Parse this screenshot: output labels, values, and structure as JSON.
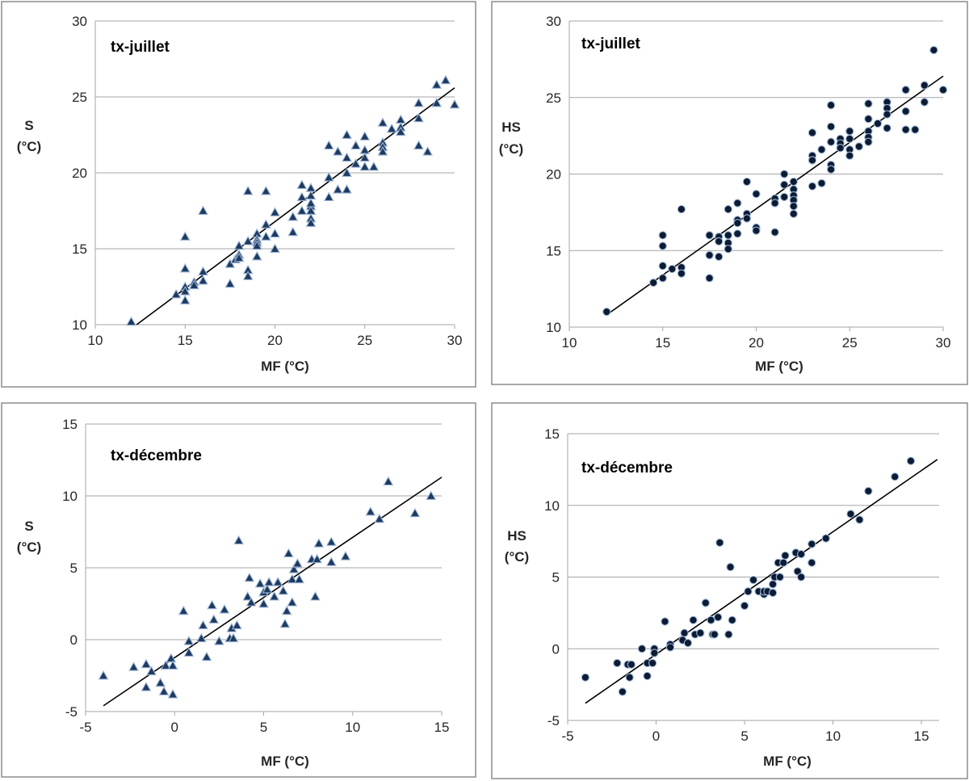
{
  "colors": {
    "frame": "#8c8c8c",
    "grid": "#a6a6a6",
    "marker_fill_triangle": "#1f3a5f",
    "marker_fill_circle": "#0d1b33",
    "marker_edge": "#9fb8d9",
    "trend_line": "#000000"
  },
  "chart_data": [
    {
      "id": "s-juillet",
      "type": "scatter",
      "title": "tx-juillet",
      "xlabel": "MF (°C)",
      "ylabel": [
        "S",
        "(°C)"
      ],
      "marker": "triangle",
      "xlim": [
        10,
        30
      ],
      "ylim": [
        10,
        30
      ],
      "xticks": [
        10,
        15,
        20,
        25,
        30
      ],
      "yticks": [
        10,
        15,
        20,
        25,
        30
      ],
      "grid": true,
      "trendline": [
        [
          12.3,
          10
        ],
        [
          30,
          25.6
        ]
      ],
      "points": [
        [
          12,
          10.2
        ],
        [
          14.5,
          12
        ],
        [
          15,
          15.8
        ],
        [
          15,
          13.7
        ],
        [
          15,
          12.5
        ],
        [
          15,
          12.2
        ],
        [
          15,
          11.6
        ],
        [
          15.5,
          12.8
        ],
        [
          15.5,
          12.6
        ],
        [
          16,
          17.5
        ],
        [
          16,
          13.5
        ],
        [
          16,
          12.9
        ],
        [
          17.5,
          14
        ],
        [
          17.5,
          12.7
        ],
        [
          17.8,
          14.3
        ],
        [
          18,
          15.2
        ],
        [
          18,
          14.6
        ],
        [
          18,
          14.4
        ],
        [
          18.5,
          18.8
        ],
        [
          18.5,
          15.5
        ],
        [
          18.5,
          13.6
        ],
        [
          18.5,
          13.2
        ],
        [
          19,
          16
        ],
        [
          19,
          15.6
        ],
        [
          19,
          15.4
        ],
        [
          19,
          15.2
        ],
        [
          19,
          14.5
        ],
        [
          19.5,
          18.8
        ],
        [
          19.5,
          16.6
        ],
        [
          19.5,
          15.8
        ],
        [
          20,
          17.4
        ],
        [
          20,
          16
        ],
        [
          20,
          15
        ],
        [
          21,
          17.1
        ],
        [
          21,
          16.1
        ],
        [
          21.5,
          19.2
        ],
        [
          21.5,
          17.5
        ],
        [
          21.5,
          18.4
        ],
        [
          22,
          19
        ],
        [
          22,
          18.5
        ],
        [
          22,
          17.8
        ],
        [
          22,
          17.5
        ],
        [
          22,
          17
        ],
        [
          22,
          16.7
        ],
        [
          22,
          18
        ],
        [
          23,
          21.8
        ],
        [
          23,
          19.7
        ],
        [
          23,
          18.4
        ],
        [
          23.5,
          21.4
        ],
        [
          23.5,
          18.9
        ],
        [
          24,
          22.5
        ],
        [
          24,
          21
        ],
        [
          24,
          20
        ],
        [
          24,
          18.9
        ],
        [
          24.5,
          21.8
        ],
        [
          24.5,
          20.6
        ],
        [
          25,
          22.4
        ],
        [
          25,
          21.5
        ],
        [
          25,
          21
        ],
        [
          25,
          20.4
        ],
        [
          25.5,
          20.4
        ],
        [
          26,
          23.3
        ],
        [
          26,
          22
        ],
        [
          26,
          21.7
        ],
        [
          26,
          21.4
        ],
        [
          26.5,
          22.9
        ],
        [
          27,
          23.5
        ],
        [
          27,
          23
        ],
        [
          27,
          22.7
        ],
        [
          28,
          24.6
        ],
        [
          28,
          23.6
        ],
        [
          28,
          21.8
        ],
        [
          28.5,
          21.4
        ],
        [
          29,
          25.8
        ],
        [
          29,
          24.6
        ],
        [
          29.5,
          26.1
        ],
        [
          30,
          24.5
        ]
      ]
    },
    {
      "id": "hs-juillet",
      "type": "scatter",
      "title": "tx-juillet",
      "xlabel": "MF (°C)",
      "ylabel": [
        "HS",
        "(°C)"
      ],
      "marker": "circle",
      "xlim": [
        10,
        30
      ],
      "ylim": [
        10,
        30
      ],
      "xticks": [
        10,
        15,
        20,
        25,
        30
      ],
      "yticks": [
        10,
        15,
        20,
        25,
        30
      ],
      "grid": true,
      "trendline": [
        [
          12,
          10.8
        ],
        [
          30,
          26.4
        ]
      ],
      "points": [
        [
          12,
          11
        ],
        [
          14.5,
          12.9
        ],
        [
          15,
          16
        ],
        [
          15,
          15.3
        ],
        [
          15,
          14
        ],
        [
          15,
          13.2
        ],
        [
          15.5,
          13.8
        ],
        [
          16,
          17.7
        ],
        [
          16,
          13.9
        ],
        [
          16,
          13.5
        ],
        [
          17.5,
          16
        ],
        [
          17.5,
          14.7
        ],
        [
          17.5,
          13.2
        ],
        [
          18,
          15.9
        ],
        [
          18,
          15.6
        ],
        [
          18,
          14.6
        ],
        [
          18.5,
          17.7
        ],
        [
          18.5,
          16
        ],
        [
          18.5,
          15.5
        ],
        [
          18.5,
          15.1
        ],
        [
          19,
          18.1
        ],
        [
          19,
          17
        ],
        [
          19,
          16.8
        ],
        [
          19,
          16.1
        ],
        [
          19.5,
          19.5
        ],
        [
          19.5,
          17.4
        ],
        [
          19.5,
          17.1
        ],
        [
          20,
          18.7
        ],
        [
          20,
          16.5
        ],
        [
          20,
          16.3
        ],
        [
          21,
          18.4
        ],
        [
          21,
          18.1
        ],
        [
          21,
          16.2
        ],
        [
          21.5,
          20
        ],
        [
          21.5,
          19.3
        ],
        [
          21.5,
          18.5
        ],
        [
          22,
          19.5
        ],
        [
          22,
          19
        ],
        [
          22,
          18.6
        ],
        [
          22,
          18.3
        ],
        [
          22,
          17.9
        ],
        [
          22,
          17.4
        ],
        [
          23,
          22.7
        ],
        [
          23,
          21.2
        ],
        [
          23,
          20.9
        ],
        [
          23,
          19.2
        ],
        [
          23.5,
          21.6
        ],
        [
          23.5,
          19.4
        ],
        [
          24,
          24.5
        ],
        [
          24,
          23.1
        ],
        [
          24,
          22.1
        ],
        [
          24,
          20.6
        ],
        [
          24,
          20.3
        ],
        [
          24.5,
          22.3
        ],
        [
          24.5,
          22
        ],
        [
          24.5,
          21.7
        ],
        [
          25,
          22.8
        ],
        [
          25,
          22.3
        ],
        [
          25,
          21.6
        ],
        [
          25,
          21.2
        ],
        [
          25.5,
          21.8
        ],
        [
          26,
          24.6
        ],
        [
          26,
          23.6
        ],
        [
          26,
          22.8
        ],
        [
          26,
          22.4
        ],
        [
          26,
          22.1
        ],
        [
          26.5,
          23.3
        ],
        [
          27,
          24.7
        ],
        [
          27,
          24.3
        ],
        [
          27,
          23.9
        ],
        [
          27,
          23
        ],
        [
          28,
          25.5
        ],
        [
          28,
          24.1
        ],
        [
          28,
          22.9
        ],
        [
          28.5,
          22.9
        ],
        [
          29,
          25.8
        ],
        [
          29,
          24.7
        ],
        [
          29.5,
          28.1
        ],
        [
          30,
          25.5
        ]
      ]
    },
    {
      "id": "s-decembre",
      "type": "scatter",
      "title": "tx-décembre",
      "xlabel": "MF (°C)",
      "ylabel": [
        "S",
        "(°C)"
      ],
      "marker": "triangle",
      "xlim": [
        -5,
        15
      ],
      "ylim": [
        -5,
        15
      ],
      "xticks": [
        -5,
        0,
        5,
        10,
        15
      ],
      "yticks": [
        -5,
        0,
        5,
        10,
        15
      ],
      "grid": true,
      "trendline": [
        [
          -4,
          -4.6
        ],
        [
          15,
          11.3
        ]
      ],
      "points": [
        [
          -4,
          -2.5
        ],
        [
          -2.3,
          -1.9
        ],
        [
          -1.6,
          -1.7
        ],
        [
          -1.6,
          -3.3
        ],
        [
          -1.3,
          -2.2
        ],
        [
          -0.8,
          -3
        ],
        [
          -0.6,
          -3.6
        ],
        [
          -0.5,
          -1.8
        ],
        [
          -0.2,
          -1.3
        ],
        [
          -0.1,
          -1.8
        ],
        [
          -0.1,
          -3.8
        ],
        [
          0.5,
          2
        ],
        [
          0.8,
          -0.1
        ],
        [
          0.8,
          -0.9
        ],
        [
          1.5,
          0.1
        ],
        [
          1.6,
          1
        ],
        [
          1.8,
          -1.2
        ],
        [
          2.1,
          2.4
        ],
        [
          2.2,
          1.4
        ],
        [
          2.5,
          -0.1
        ],
        [
          2.8,
          2.1
        ],
        [
          3.1,
          0.1
        ],
        [
          3.2,
          0.8
        ],
        [
          3.3,
          0.1
        ],
        [
          3.5,
          1
        ],
        [
          3.6,
          6.9
        ],
        [
          4.1,
          3
        ],
        [
          4.2,
          4.3
        ],
        [
          4.3,
          2.6
        ],
        [
          4.8,
          3.9
        ],
        [
          5,
          3.3
        ],
        [
          5,
          2.5
        ],
        [
          5.2,
          3.5
        ],
        [
          5.3,
          4
        ],
        [
          5.6,
          3
        ],
        [
          5.8,
          4
        ],
        [
          6.1,
          3.4
        ],
        [
          6.2,
          1.1
        ],
        [
          6.3,
          2
        ],
        [
          6.4,
          6
        ],
        [
          6.6,
          4.2
        ],
        [
          6.6,
          2.6
        ],
        [
          6.7,
          4.9
        ],
        [
          6.9,
          5.3
        ],
        [
          7,
          4.2
        ],
        [
          7.7,
          5.6
        ],
        [
          7.9,
          3
        ],
        [
          8,
          5.6
        ],
        [
          8.1,
          6.7
        ],
        [
          8.8,
          5.4
        ],
        [
          8.8,
          6.8
        ],
        [
          9.6,
          5.8
        ],
        [
          11,
          8.9
        ],
        [
          11.5,
          8.4
        ],
        [
          12,
          11
        ],
        [
          13.5,
          8.8
        ],
        [
          14.4,
          10
        ]
      ]
    },
    {
      "id": "hs-decembre",
      "type": "scatter",
      "title": "tx-décembre",
      "xlabel": "MF (°C)",
      "ylabel": [
        "HS",
        "(°C)"
      ],
      "marker": "circle",
      "xlim": [
        -5,
        16
      ],
      "ylim": [
        -5,
        15
      ],
      "xticks": [
        -5,
        0,
        5,
        10,
        15
      ],
      "yticks": [
        -5,
        0,
        5,
        10,
        15
      ],
      "grid": true,
      "trendline": [
        [
          -4,
          -3.8
        ],
        [
          15.9,
          13.2
        ]
      ],
      "points": [
        [
          -4,
          -2
        ],
        [
          -2.2,
          -1
        ],
        [
          -1.6,
          -1.1
        ],
        [
          -1.5,
          -2
        ],
        [
          -1.4,
          -1.1
        ],
        [
          -1.9,
          -3
        ],
        [
          -0.8,
          0
        ],
        [
          -0.5,
          -1
        ],
        [
          -0.5,
          -1.9
        ],
        [
          -0.2,
          -1
        ],
        [
          -0.1,
          0
        ],
        [
          -0.1,
          -0.3
        ],
        [
          0.5,
          1.9
        ],
        [
          0.8,
          0.3
        ],
        [
          0.8,
          0.1
        ],
        [
          1.5,
          0.6
        ],
        [
          1.6,
          1.1
        ],
        [
          1.8,
          0.4
        ],
        [
          2.1,
          2
        ],
        [
          2.2,
          1
        ],
        [
          2.5,
          1.1
        ],
        [
          2.8,
          3.2
        ],
        [
          3.1,
          2
        ],
        [
          3.2,
          1
        ],
        [
          3.3,
          1
        ],
        [
          3.5,
          2.2
        ],
        [
          3.6,
          7.4
        ],
        [
          4.1,
          1
        ],
        [
          4.2,
          5.7
        ],
        [
          4.3,
          2
        ],
        [
          5,
          3
        ],
        [
          5.2,
          4
        ],
        [
          5.5,
          4.8
        ],
        [
          5.8,
          4
        ],
        [
          6.1,
          3.8
        ],
        [
          6.1,
          4
        ],
        [
          6.3,
          4
        ],
        [
          6.6,
          4.5
        ],
        [
          6.6,
          3.9
        ],
        [
          6.7,
          5
        ],
        [
          6.9,
          6
        ],
        [
          7,
          5
        ],
        [
          7.2,
          6
        ],
        [
          7.3,
          6.5
        ],
        [
          7.9,
          6.7
        ],
        [
          8,
          5.4
        ],
        [
          8.2,
          6.6
        ],
        [
          8.2,
          5
        ],
        [
          8.8,
          7.3
        ],
        [
          8.8,
          6
        ],
        [
          9.6,
          7.7
        ],
        [
          11,
          9.4
        ],
        [
          11.5,
          9
        ],
        [
          12,
          11
        ],
        [
          13.5,
          12
        ],
        [
          14.4,
          13.1
        ]
      ]
    }
  ]
}
